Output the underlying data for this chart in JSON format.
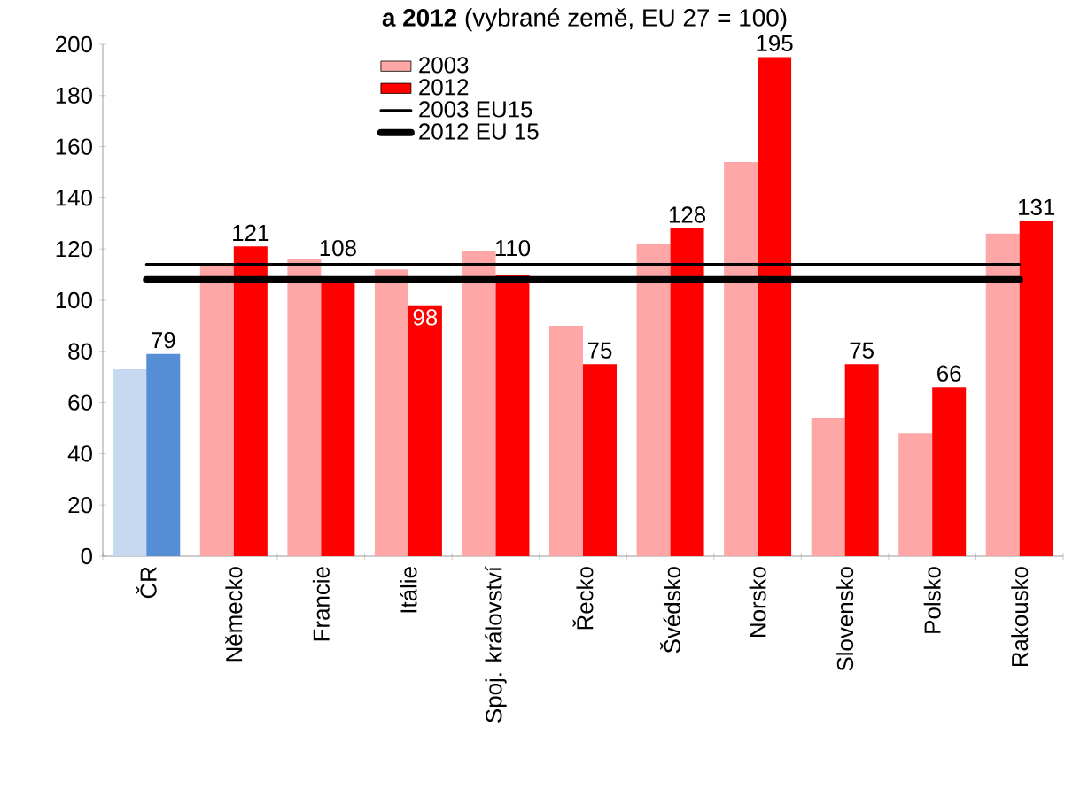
{
  "chart_data": {
    "type": "bar",
    "title": "**a 2012** (vybrané země, EU 27 = 100)",
    "categories": [
      "ČR",
      "Německo",
      "Francie",
      "Itálie",
      "Spoj. království",
      "Řecko",
      "Švédsko",
      "Norsko",
      "Slovensko",
      "Polsko",
      "Rakousko"
    ],
    "series": [
      {
        "name": "2003",
        "color": "#ffa6a6",
        "colors": [
          "#c6d9f1",
          "#ffa6a6",
          "#ffa6a6",
          "#ffa6a6",
          "#ffa6a6",
          "#ffa6a6",
          "#ffa6a6",
          "#ffa6a6",
          "#ffa6a6",
          "#ffa6a6",
          "#ffa6a6"
        ],
        "values": [
          73,
          114,
          116,
          112,
          119,
          90,
          122,
          154,
          54,
          48,
          126
        ]
      },
      {
        "name": "2012",
        "color": "#ff0000",
        "colors": [
          "#558ed5",
          "#ff0000",
          "#ff0000",
          "#ff0000",
          "#ff0000",
          "#ff0000",
          "#ff0000",
          "#ff0000",
          "#ff0000",
          "#ff0000",
          "#ff0000"
        ],
        "values": [
          79,
          121,
          108,
          98,
          110,
          75,
          128,
          195,
          75,
          66,
          131
        ],
        "value_labels": [
          "79",
          "121",
          "108",
          "98",
          "110",
          "75",
          "128",
          "195",
          "75",
          "66",
          "131"
        ]
      },
      {
        "name": "2003 EU15",
        "type": "line",
        "color": "#000000",
        "values": [
          114,
          114,
          114,
          114,
          114,
          114,
          114,
          114,
          114,
          114,
          114
        ]
      },
      {
        "name": "2012 EU 15",
        "type": "line",
        "color": "#000000",
        "values": [
          108,
          108,
          108,
          108,
          108,
          108,
          108,
          108,
          108,
          108,
          108
        ]
      }
    ],
    "ylim": [
      0,
      200
    ],
    "yticks": [
      0,
      20,
      40,
      60,
      80,
      100,
      120,
      140,
      160,
      180,
      200
    ],
    "grid": false,
    "legend": "top"
  }
}
